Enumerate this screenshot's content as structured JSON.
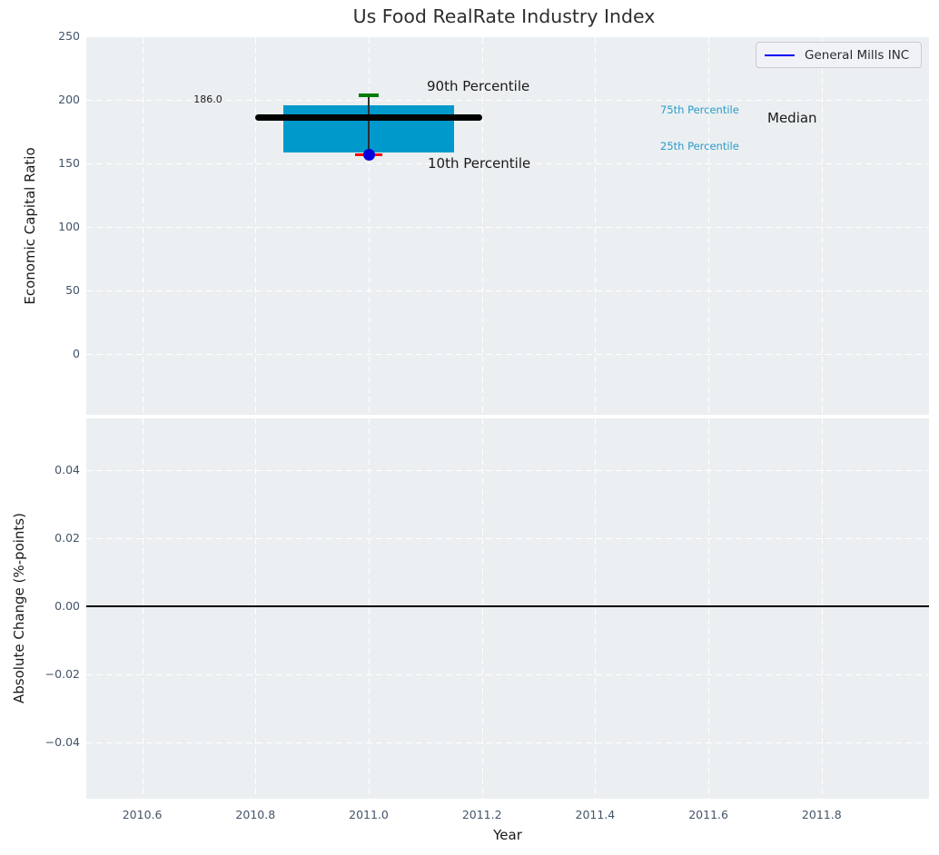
{
  "title": "Us Food RealRate Industry Index",
  "chart_data": [
    {
      "type": "boxplot",
      "title": "Us Food RealRate Industry Index",
      "ylabel": "Economic Capital Ratio",
      "xlabel": "",
      "ylim": [
        -50,
        250
      ],
      "xlim": [
        2010.5,
        2012.0
      ],
      "yticks": [
        250,
        200,
        150,
        100,
        50,
        0
      ],
      "grid": true,
      "legend": {
        "position": "upper right",
        "entries": [
          {
            "label": "General Mills INC",
            "line_color": "#0000f5"
          }
        ]
      },
      "series": [
        {
          "name": "General Mills INC",
          "x": 2011.0,
          "p90": 203.5,
          "p75": 196.0,
          "median": 186.0,
          "p25": 158.5,
          "p10": 157.0,
          "company_value": 157.0,
          "median_label": "186.0",
          "box_x": [
            2010.85,
            2011.15
          ],
          "median_x": [
            2010.8,
            2011.2
          ]
        }
      ],
      "annotations": [
        {
          "text": "90th Percentile",
          "color": "#1a1a1a"
        },
        {
          "text": "10th Percentile",
          "color": "#1a1a1a"
        },
        {
          "text": "75th Percentile",
          "color": "#2b9bc9"
        },
        {
          "text": "25th Percentile",
          "color": "#2b9bc9"
        },
        {
          "text": "Median",
          "color": "#1a1a1a"
        }
      ],
      "colors": {
        "box_fill": "#0099cc",
        "median_line": "#000000",
        "p90_cap": "#007d00",
        "p10_cap": "#f40000",
        "company_dot": "#0000dd",
        "axes_background": "#ebeff1",
        "gridline": "#ffffff",
        "tick_label": "#44546a"
      }
    },
    {
      "type": "line",
      "ylabel": "Absolute Change (%-points)",
      "xlabel": "Year",
      "ylim": [
        -0.056,
        0.055
      ],
      "xlim": [
        2010.5,
        2012.0
      ],
      "yticks": [
        0.04,
        0.02,
        0.0,
        -0.02,
        -0.04
      ],
      "ytick_labels": [
        "0.04",
        "0.02",
        "0.00",
        "−0.02",
        "−0.04"
      ],
      "xticks": [
        2010.6,
        2010.8,
        2011.0,
        2011.2,
        2011.4,
        2011.6,
        2011.8
      ],
      "xtick_labels": [
        "2010.6",
        "2010.8",
        "2011.0",
        "2011.2",
        "2011.4",
        "2011.6",
        "2011.8"
      ],
      "zero_line": 0.0,
      "grid": true,
      "series": []
    }
  ]
}
